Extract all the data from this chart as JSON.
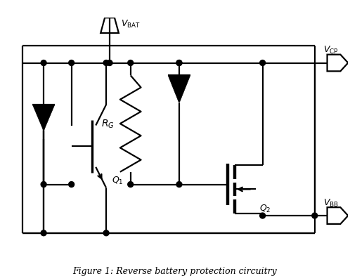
{
  "fig_width": 4.98,
  "fig_height": 3.93,
  "dpi": 100,
  "background": "#ffffff",
  "line_color": "#000000",
  "line_width": 1.6,
  "title": "Figure 1: Reverse battery protection circuitry",
  "title_fontsize": 9
}
